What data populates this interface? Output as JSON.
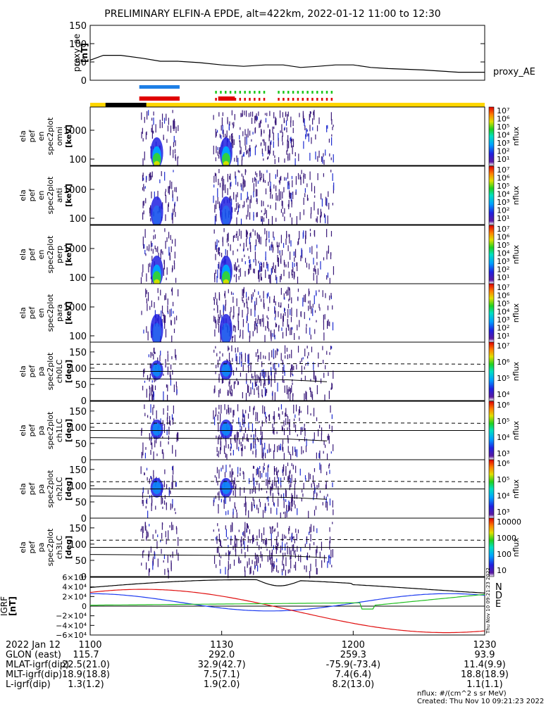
{
  "title": "PRELIMINARY ELFIN-A EPDE, alt=422km, 2022-01-12 11:00 to 12:30",
  "chart_data": [
    {
      "type": "line",
      "panel": "proxy_ae",
      "ylabel": [
        "proxy_ae",
        "[nT]"
      ],
      "ylim": [
        0,
        150
      ],
      "yticks": [
        "0",
        "50",
        "100",
        "150"
      ],
      "series": [
        {
          "name": "proxy_AE",
          "x_min": [
            0,
            3,
            7,
            12,
            16,
            20,
            25,
            30,
            35,
            40,
            44,
            48,
            52,
            56,
            60,
            64,
            68,
            72,
            76,
            80,
            84,
            90
          ],
          "values": [
            55,
            68,
            68,
            60,
            52,
            52,
            48,
            42,
            38,
            42,
            42,
            35,
            38,
            42,
            42,
            35,
            32,
            30,
            28,
            25,
            22,
            22
          ]
        }
      ]
    },
    {
      "type": "heatmap",
      "panels": [
        {
          "ylabel": [
            "ela",
            "pef",
            "en",
            "spec2plot",
            "omni",
            "[keV]"
          ],
          "yticks": [
            "100",
            "1000"
          ],
          "ztitle": "nflux",
          "zticks": [
            "10⁷",
            "10⁶",
            "10⁵",
            "10⁴",
            "10³",
            "10²",
            "10¹"
          ]
        },
        {
          "ylabel": [
            "ela",
            "pef",
            "en",
            "spec2plot",
            "anti",
            "[keV]"
          ],
          "yticks": [
            "100",
            "1000"
          ],
          "ztitle": "nflux",
          "zticks": [
            "10⁷",
            "10⁶",
            "10⁵",
            "10⁴",
            "10³",
            "10²",
            "10¹"
          ]
        },
        {
          "ylabel": [
            "ela",
            "pef",
            "en",
            "spec2plot",
            "perp",
            "[keV]"
          ],
          "yticks": [
            "100",
            "1000"
          ],
          "ztitle": "nflux",
          "zticks": [
            "10⁷",
            "10⁶",
            "10⁵",
            "10⁴",
            "10³",
            "10²",
            "10¹"
          ]
        },
        {
          "ylabel": [
            "ela",
            "pef",
            "en",
            "spec2plot",
            "para",
            "[keV]"
          ],
          "yticks": [
            "100",
            "1000"
          ],
          "ztitle": "nflux",
          "zticks": [
            "10⁷",
            "10⁶",
            "10⁵",
            "10⁴",
            "10³",
            "10²",
            "10¹"
          ]
        },
        {
          "ylabel": [
            "ela",
            "pef",
            "pa",
            "spec2plot",
            "ch0LC",
            "[deg]"
          ],
          "yticks": [
            "0",
            "50",
            "100",
            "150"
          ],
          "ztitle": "nflux",
          "zticks": [
            "10⁷",
            "10⁶",
            "10⁵",
            "10⁴"
          ]
        },
        {
          "ylabel": [
            "ela",
            "pef",
            "pa",
            "spec2plot",
            "ch1LC",
            "[deg]"
          ],
          "yticks": [
            "0",
            "50",
            "100",
            "150"
          ],
          "ztitle": "nflux",
          "zticks": [
            "10⁶",
            "10⁵",
            "10⁴",
            "10³"
          ]
        },
        {
          "ylabel": [
            "ela",
            "pef",
            "pa",
            "spec2plot",
            "ch2LC",
            "[deg]"
          ],
          "yticks": [
            "0",
            "50",
            "100",
            "150"
          ],
          "ztitle": "nflux",
          "zticks": [
            "10⁶",
            "10⁵",
            "10⁴",
            "10³"
          ]
        },
        {
          "ylabel": [
            "ela",
            "pef",
            "pa",
            "spec2plot",
            "ch3LC",
            "[deg]"
          ],
          "yticks": [
            "0",
            "50",
            "100",
            "150"
          ],
          "ztitle": "nflux",
          "zticks": [
            "10000",
            "1000",
            "100",
            "10"
          ]
        }
      ]
    },
    {
      "type": "line",
      "panel": "igrf",
      "ylabel": [
        "IGRF",
        "[nT]"
      ],
      "yticks": [
        "6×10⁴",
        "4×10⁴",
        "2×10⁴",
        "0",
        "−2×10⁴",
        "−4×10⁴",
        "−6×10⁴"
      ],
      "ylim": [
        -60000,
        60000
      ],
      "legend": [
        "N",
        "E",
        "D"
      ],
      "series": [
        {
          "name": "N",
          "values": []
        },
        {
          "name": "E",
          "values": []
        },
        {
          "name": "D",
          "values": []
        }
      ]
    }
  ],
  "table": {
    "rows": [
      {
        "label": "2022 Jan 12",
        "values": [
          "1100",
          "1130",
          "1200",
          "1230"
        ]
      },
      {
        "label": "GLON (east)",
        "values": [
          "115.7",
          "292.0",
          "259.3",
          "93.9"
        ]
      },
      {
        "label": "MLAT-igrf(dip)",
        "values": [
          "22.5(21.0)",
          "32.9(42.7)",
          "-75.9(-73.4)",
          "11.4(9.9)"
        ]
      },
      {
        "label": "MLT-igrf(dip)",
        "values": [
          "18.9(18.8)",
          "7.5(7.1)",
          "7.4(6.4)",
          "18.8(18.9)"
        ]
      },
      {
        "label": "L-igrf(dip)",
        "values": [
          "1.3(1.2)",
          "1.9(2.0)",
          "8.2(13.0)",
          "1.1(1.1)"
        ]
      }
    ]
  },
  "footer": {
    "units": "nflux: #/(cm^2 s sr MeV)",
    "created": "Created: Thu Nov 10 09:21:23 2022",
    "side_stamp": "Thu Nov 10 09:21:23 2022"
  },
  "colors": {
    "ae": "#000000",
    "n": "#1e3cf0",
    "e": "#22c022",
    "d": "#e01010",
    "bar_blue": "#1e7fe6",
    "bar_red": "#e00000",
    "bar_green": "#1ec81e",
    "bar_yellow": "#ffd600"
  }
}
